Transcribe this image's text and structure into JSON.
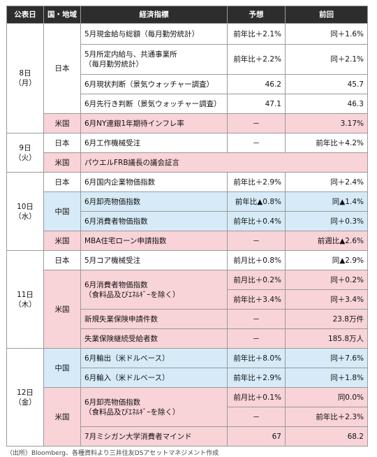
{
  "headers": [
    "公表日",
    "国・地域",
    "経済指標",
    "予想",
    "前回"
  ],
  "days": [
    {
      "date": [
        "8日",
        "（月）"
      ],
      "groups": [
        {
          "region": "日本",
          "color": "jp",
          "rows": [
            {
              "ind": [
                "5月現金給与総額（毎月勤労統計）"
              ],
              "forecast": "前年比＋2.1%",
              "previous": "同＋1.6%",
              "h": 30
            },
            {
              "ind": [
                "5月所定内給与、共通事業所",
                "（毎月勤労統計）"
              ],
              "forecast": "前年比＋2.2%",
              "previous": "同＋2.1%",
              "h": 43
            },
            {
              "ind": [
                "6月現状判断（景気ウォッチャー調査）"
              ],
              "forecast": "46.2",
              "previous": "45.7",
              "h": 28
            },
            {
              "ind": [
                "6月先行き判断（景気ウォッチャー調査）"
              ],
              "forecast": "47.1",
              "previous": "46.3",
              "h": 28
            }
          ]
        },
        {
          "region": "米国",
          "color": "us",
          "rows": [
            {
              "ind": [
                "6月NY連銀1年期待インフレ率"
              ],
              "forecast": "－",
              "previous": "3.17%",
              "h": 28
            }
          ]
        }
      ]
    },
    {
      "date": [
        "9日",
        "（火）"
      ],
      "groups": [
        {
          "region": "日本",
          "color": "jp",
          "rows": [
            {
              "ind": [
                "6月工作機械受注"
              ],
              "forecast": "－",
              "previous": "前年比＋4.2%",
              "h": 28
            }
          ]
        },
        {
          "region": "米国",
          "color": "us",
          "rows": [
            {
              "ind": [
                "パウエルFRB議長の議会証言"
              ],
              "forecast": "",
              "previous": "",
              "h": 28,
              "span": true
            }
          ]
        }
      ]
    },
    {
      "date": [
        "10日",
        "（水）"
      ],
      "groups": [
        {
          "region": "日本",
          "color": "jp",
          "rows": [
            {
              "ind": [
                "6月国内企業物価指数"
              ],
              "forecast": "前年比＋2.9%",
              "previous": "同＋2.4%",
              "h": 28
            }
          ]
        },
        {
          "region": "中国",
          "color": "cn",
          "rows": [
            {
              "ind": [
                "6月卸売物価指数"
              ],
              "forecast": "前年比▲0.8%",
              "previous": "同▲1.4%",
              "h": 28
            },
            {
              "ind": [
                "6月消費者物価指数"
              ],
              "forecast": "前年比＋0.4%",
              "previous": "同＋0.3%",
              "h": 28
            }
          ]
        },
        {
          "region": "米国",
          "color": "us",
          "rows": [
            {
              "ind": [
                "MBA住宅ローン申請指数"
              ],
              "forecast": "－",
              "previous": "前週比▲2.6%",
              "h": 28
            }
          ]
        }
      ]
    },
    {
      "date": [
        "11日",
        "（木）"
      ],
      "groups": [
        {
          "region": "日本",
          "color": "jp",
          "rows": [
            {
              "ind": [
                "5月コア機械受注"
              ],
              "forecast": "前月比＋0.8%",
              "previous": "同▲2.9%",
              "h": 28
            }
          ]
        },
        {
          "region": "米国",
          "color": "us",
          "rows": [
            {
              "ind": [
                "6月消費者物価指数",
                "（食料品及びｴﾈﾙｷﾞｰを除く）"
              ],
              "forecast": "前月比＋0.2%",
              "previous": "同＋0.2%",
              "h": 28,
              "indRows": 2
            },
            {
              "forecast": "前年比＋3.4%",
              "previous": "同＋3.4%",
              "h": 28,
              "cont": true
            },
            {
              "ind": [
                "新規失業保険申請件数"
              ],
              "forecast": "－",
              "previous": "23.8万件",
              "h": 28
            },
            {
              "ind": [
                "失業保険継続受給者数"
              ],
              "forecast": "－",
              "previous": "185.8万人",
              "h": 28
            }
          ]
        }
      ]
    },
    {
      "date": [
        "12日",
        "（金）"
      ],
      "groups": [
        {
          "region": "中国",
          "color": "cn",
          "rows": [
            {
              "ind": [
                "6月輸出（米ドルベース）"
              ],
              "forecast": "前年比＋8.0%",
              "previous": "同＋7.6%",
              "h": 28
            },
            {
              "ind": [
                "6月輸入（米ドルベース）"
              ],
              "forecast": "前年比＋2.9%",
              "previous": "同＋1.8%",
              "h": 28
            }
          ]
        },
        {
          "region": "米国",
          "color": "us",
          "rows": [
            {
              "ind": [
                "6月卸売物価指数",
                "（食料品及びｴﾈﾙｷﾞｰを除く）"
              ],
              "forecast": "前月比＋0.1%",
              "previous": "同0.0%",
              "h": 28,
              "indRows": 2
            },
            {
              "forecast": "－",
              "previous": "前年比＋2.3%",
              "h": 28,
              "cont": true
            },
            {
              "ind": [
                "7月ミシガン大学消費者マインド"
              ],
              "forecast": "67",
              "previous": "68.2",
              "h": 28
            }
          ]
        }
      ]
    }
  ],
  "footer": "（出所）Bloomberg、各種資料より三井住友DSアセットマネジメント作成"
}
